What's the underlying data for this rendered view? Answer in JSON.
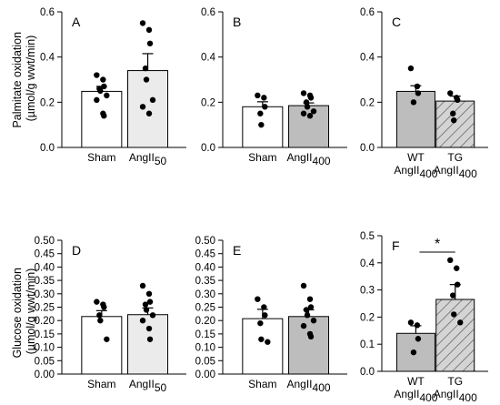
{
  "row_titles": [
    {
      "line1": "Palmitate oxidation",
      "line2": "(µmol/g wwt/min)"
    },
    {
      "line1": "Glucose oxidation",
      "line2": "(µmol/g wwt/min)"
    }
  ],
  "chart_data": [
    {
      "type": "bar",
      "panel": "A",
      "ylim": [
        0,
        0.6
      ],
      "yticks": [
        "0.0",
        "0.2",
        "0.4",
        "0.6"
      ],
      "categories": [
        {
          "main": "Sham",
          "sub": "",
          "line2": "",
          "line2sub": ""
        },
        {
          "main": "AngII",
          "sub": "50",
          "line2": "",
          "line2sub": ""
        }
      ],
      "values": [
        0.248,
        0.34
      ],
      "errors": [
        0.022,
        0.075
      ],
      "points": [
        [
          0.32,
          0.3,
          0.27,
          0.26,
          0.25,
          0.23,
          0.21,
          0.15,
          0.14
        ],
        [
          0.55,
          0.52,
          0.46,
          0.35,
          0.3,
          0.21,
          0.18,
          0.15
        ]
      ],
      "fills": [
        "#ffffff",
        "#ebebeb"
      ],
      "hatched": [
        false,
        false
      ],
      "significance": ""
    },
    {
      "type": "bar",
      "panel": "B",
      "ylim": [
        0,
        0.6
      ],
      "yticks": [
        "0.0",
        "0.2",
        "0.4",
        "0.6"
      ],
      "categories": [
        {
          "main": "Sham",
          "sub": "",
          "line2": "",
          "line2sub": ""
        },
        {
          "main": "AngII",
          "sub": "400",
          "line2": "",
          "line2sub": ""
        }
      ],
      "values": [
        0.18,
        0.185
      ],
      "errors": [
        0.022,
        0.012
      ],
      "points": [
        [
          0.23,
          0.22,
          0.18,
          0.15,
          0.1
        ],
        [
          0.24,
          0.23,
          0.22,
          0.2,
          0.18,
          0.16,
          0.15,
          0.14
        ]
      ],
      "fills": [
        "#ffffff",
        "#bdbdbd"
      ],
      "hatched": [
        false,
        false
      ],
      "significance": ""
    },
    {
      "type": "bar",
      "panel": "C",
      "ylim": [
        0,
        0.6
      ],
      "yticks": [
        "0.0",
        "0.2",
        "0.4",
        "0.6"
      ],
      "categories": [
        {
          "main": "WT",
          "sub": "",
          "line2": "AngII",
          "line2sub": "400"
        },
        {
          "main": "TG",
          "sub": "",
          "line2": "AngII",
          "line2sub": "400"
        }
      ],
      "values": [
        0.248,
        0.205
      ],
      "errors": [
        0.025,
        0.022
      ],
      "points": [
        [
          0.35,
          0.27,
          0.24,
          0.2
        ],
        [
          0.24,
          0.22,
          0.21,
          0.15,
          0.12
        ]
      ],
      "fills": [
        "#bdbdbd",
        "#d4d4d4"
      ],
      "hatched": [
        false,
        true
      ],
      "significance": ""
    },
    {
      "type": "bar",
      "panel": "D",
      "ylim": [
        0,
        0.5
      ],
      "yticks": [
        "0.00",
        "0.05",
        "0.10",
        "0.15",
        "0.20",
        "0.25",
        "0.30",
        "0.35",
        "0.40",
        "0.45",
        "0.50"
      ],
      "categories": [
        {
          "main": "Sham",
          "sub": "",
          "line2": "",
          "line2sub": ""
        },
        {
          "main": "AngII",
          "sub": "50",
          "line2": "",
          "line2sub": ""
        }
      ],
      "values": [
        0.215,
        0.222
      ],
      "errors": [
        0.022,
        0.025
      ],
      "points": [
        [
          0.27,
          0.26,
          0.25,
          0.22,
          0.2,
          0.13
        ],
        [
          0.33,
          0.3,
          0.27,
          0.26,
          0.24,
          0.22,
          0.2,
          0.17,
          0.13
        ]
      ],
      "fills": [
        "#ffffff",
        "#ebebeb"
      ],
      "hatched": [
        false,
        false
      ],
      "significance": ""
    },
    {
      "type": "bar",
      "panel": "E",
      "ylim": [
        0,
        0.5
      ],
      "yticks": [
        "0.00",
        "0.05",
        "0.10",
        "0.15",
        "0.20",
        "0.25",
        "0.30",
        "0.35",
        "0.40",
        "0.45",
        "0.50"
      ],
      "categories": [
        {
          "main": "Sham",
          "sub": "",
          "line2": "",
          "line2sub": ""
        },
        {
          "main": "AngII",
          "sub": "400",
          "line2": "",
          "line2sub": ""
        }
      ],
      "values": [
        0.207,
        0.215
      ],
      "errors": [
        0.035,
        0.025
      ],
      "points": [
        [
          0.28,
          0.25,
          0.22,
          0.19,
          0.13,
          0.12
        ],
        [
          0.33,
          0.28,
          0.25,
          0.24,
          0.22,
          0.2,
          0.18,
          0.15,
          0.14
        ]
      ],
      "fills": [
        "#ffffff",
        "#bdbdbd"
      ],
      "hatched": [
        false,
        false
      ],
      "significance": ""
    },
    {
      "type": "bar",
      "panel": "F",
      "ylim": [
        0,
        0.5
      ],
      "yticks": [
        "0.0",
        "0.1",
        "0.2",
        "0.3",
        "0.4",
        "0.5"
      ],
      "categories": [
        {
          "main": "WT",
          "sub": "",
          "line2": "AngII",
          "line2sub": "400"
        },
        {
          "main": "TG",
          "sub": "",
          "line2": "AngII",
          "line2sub": "400"
        }
      ],
      "values": [
        0.14,
        0.265
      ],
      "errors": [
        0.028,
        0.055
      ],
      "points": [
        [
          0.18,
          0.17,
          0.12,
          0.07
        ],
        [
          0.41,
          0.38,
          0.32,
          0.28,
          0.21,
          0.18
        ]
      ],
      "fills": [
        "#bdbdbd",
        "#d4d4d4"
      ],
      "hatched": [
        false,
        true
      ],
      "significance": "*"
    }
  ]
}
